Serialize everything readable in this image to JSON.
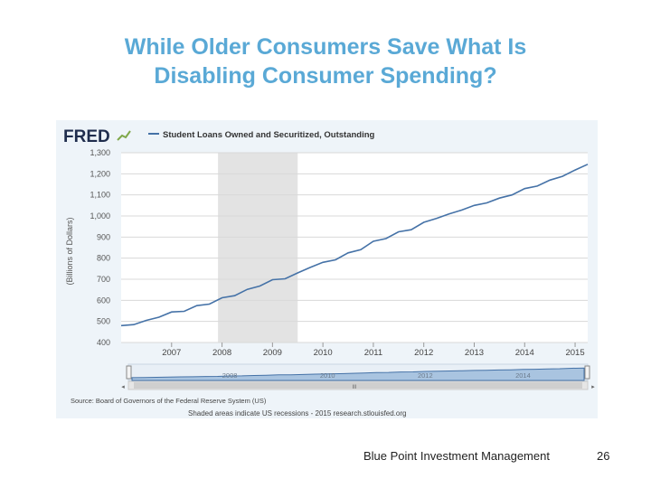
{
  "slide": {
    "title_line1": "While Older Consumers Save What Is",
    "title_line2": "Disabling Consumer Spending?",
    "footer": "Blue Point Investment Management",
    "page_number": "26"
  },
  "colors": {
    "title": "#5aa9d6",
    "line": "#4572a7",
    "recession": "#e3e3e3",
    "chart_bg": "#eef4f9"
  },
  "chart_data": {
    "type": "line",
    "logo": "FRED",
    "legend": "Student Loans Owned and Securitized, Outstanding",
    "ylabel": "(Billions of Dollars)",
    "ylim": [
      400,
      1300
    ],
    "yticks": [
      "1,300",
      "1,200",
      "1,100",
      "1,000",
      "900",
      "800",
      "700",
      "600",
      "500",
      "400"
    ],
    "ytick_values": [
      1300,
      1200,
      1100,
      1000,
      900,
      800,
      700,
      600,
      500,
      400
    ],
    "xlim": [
      2006.0,
      2015.25
    ],
    "xticks": [
      "2007",
      "2008",
      "2009",
      "2010",
      "2011",
      "2012",
      "2013",
      "2014",
      "2015"
    ],
    "xtick_values": [
      2007,
      2008,
      2009,
      2010,
      2011,
      2012,
      2013,
      2014,
      2015
    ],
    "recession": [
      2007.92,
      2009.5
    ],
    "series": [
      {
        "x": [
          2006.0,
          2006.25,
          2006.5,
          2006.75,
          2007.0,
          2007.25,
          2007.5,
          2007.75,
          2008.0,
          2008.25,
          2008.5,
          2008.75,
          2009.0,
          2009.25,
          2009.5,
          2009.75,
          2010.0,
          2010.25,
          2010.5,
          2010.75,
          2011.0,
          2011.25,
          2011.5,
          2011.75,
          2012.0,
          2012.25,
          2012.5,
          2012.75,
          2013.0,
          2013.25,
          2013.5,
          2013.75,
          2014.0,
          2014.25,
          2014.5,
          2014.75,
          2015.0,
          2015.25
        ],
        "values": [
          480,
          485,
          505,
          520,
          545,
          548,
          575,
          582,
          612,
          622,
          652,
          668,
          698,
          702,
          730,
          756,
          780,
          792,
          825,
          840,
          880,
          893,
          925,
          935,
          970,
          988,
          1010,
          1028,
          1050,
          1062,
          1085,
          1100,
          1130,
          1142,
          1170,
          1188,
          1218,
          1245
        ]
      }
    ],
    "navigator": {
      "labels": [
        "2008",
        "2010",
        "2012",
        "2014"
      ],
      "label_values": [
        2008,
        2010,
        2012,
        2014
      ],
      "grip": "III"
    },
    "source": "Source: Board of Governors of the Federal Reserve System (US)",
    "note": "Shaded areas indicate US recessions - 2015 research.stlouisfed.org"
  }
}
